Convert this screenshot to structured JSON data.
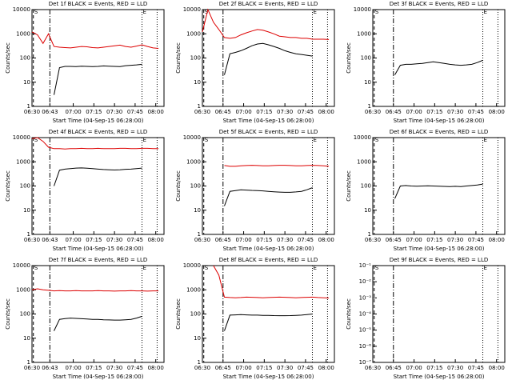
{
  "chart_data": [
    {
      "type": "line",
      "title": "Det 1f BLACK = Events, RED = LLD",
      "ylabel": "Counts/sec",
      "xlabel": "Start Time (04-Sep-15 06:28:00)",
      "log_y": true,
      "start_label": "S",
      "end_label": "E",
      "vlines": [
        1,
        13,
        80,
        91
      ],
      "x": [
        0,
        4,
        8,
        12,
        16,
        20,
        24,
        28,
        32,
        36,
        40,
        44,
        48,
        52,
        56,
        60,
        64,
        68,
        72,
        76,
        80,
        84,
        88,
        92,
        96
      ],
      "xlim": [
        0,
        96
      ],
      "xticks": [
        {
          "value": 0,
          "label": "06:30"
        },
        {
          "value": 13,
          "label": "06:43"
        },
        {
          "value": 30,
          "label": "07:00"
        },
        {
          "value": 45,
          "label": "07:15"
        },
        {
          "value": 60,
          "label": "07:30"
        },
        {
          "value": 75,
          "label": "07:45"
        },
        {
          "value": 90,
          "label": "08:00"
        }
      ],
      "ylim": [
        1,
        10000
      ],
      "yticks": [
        1,
        10,
        100,
        1000,
        10000
      ],
      "series": [
        {
          "color": "#000000",
          "values": [
            null,
            null,
            null,
            null,
            3,
            40,
            45,
            45,
            44,
            46,
            45,
            44,
            45,
            47,
            46,
            45,
            44,
            48,
            50,
            52,
            55,
            null,
            null,
            null,
            null
          ]
        },
        {
          "color": "#dd0000",
          "values": [
            1200,
            900,
            400,
            1000,
            300,
            280,
            270,
            260,
            280,
            300,
            290,
            270,
            260,
            280,
            300,
            320,
            340,
            300,
            280,
            310,
            350,
            300,
            260,
            250,
            null
          ]
        }
      ]
    },
    {
      "type": "line",
      "title": "Det 2f BLACK = Events, RED = LLD",
      "ylabel": "Counts/sec",
      "xlabel": "Start Time (04-Sep-15 06:28:00)",
      "log_y": true,
      "start_label": "S",
      "end_label": "E",
      "vlines": [
        1,
        15,
        80,
        91
      ],
      "x": [
        0,
        4,
        8,
        12,
        16,
        20,
        24,
        28,
        32,
        36,
        40,
        44,
        48,
        52,
        56,
        60,
        64,
        68,
        72,
        76,
        80,
        84,
        88,
        92,
        96
      ],
      "xlim": [
        0,
        96
      ],
      "xticks": [
        {
          "value": 0,
          "label": "06:30"
        },
        {
          "value": 15,
          "label": "06:45"
        },
        {
          "value": 30,
          "label": "07:00"
        },
        {
          "value": 45,
          "label": "07:15"
        },
        {
          "value": 60,
          "label": "07:30"
        },
        {
          "value": 75,
          "label": "07:45"
        },
        {
          "value": 90,
          "label": "08:00"
        }
      ],
      "ylim": [
        1,
        10000
      ],
      "yticks": [
        1,
        10,
        100,
        1000,
        10000
      ],
      "series": [
        {
          "color": "#000000",
          "values": [
            null,
            null,
            null,
            null,
            20,
            150,
            170,
            200,
            250,
            320,
            380,
            400,
            350,
            300,
            250,
            200,
            170,
            150,
            140,
            130,
            120,
            null,
            null,
            null,
            null
          ]
        },
        {
          "color": "#dd0000",
          "values": [
            1200,
            10000,
            3000,
            1500,
            700,
            650,
            700,
            900,
            1100,
            1300,
            1500,
            1400,
            1200,
            1000,
            800,
            750,
            700,
            700,
            650,
            650,
            600,
            600,
            600,
            580,
            null
          ]
        }
      ]
    },
    {
      "type": "line",
      "title": "Det 3f BLACK = Events, RED = LLD",
      "ylabel": "Counts/sec",
      "xlabel": "Start Time (04-Sep-15 06:28:00)",
      "log_y": true,
      "start_label": "S",
      "end_label": "E",
      "vlines": [
        1,
        15,
        80,
        91
      ],
      "x": [
        0,
        4,
        8,
        12,
        16,
        20,
        24,
        28,
        32,
        36,
        40,
        44,
        48,
        52,
        56,
        60,
        64,
        68,
        72,
        76,
        80,
        84,
        88,
        92,
        96
      ],
      "xlim": [
        0,
        96
      ],
      "xticks": [
        {
          "value": 0,
          "label": "06:30"
        },
        {
          "value": 15,
          "label": "06:45"
        },
        {
          "value": 30,
          "label": "07:00"
        },
        {
          "value": 45,
          "label": "07:15"
        },
        {
          "value": 60,
          "label": "07:30"
        },
        {
          "value": 75,
          "label": "07:45"
        },
        {
          "value": 90,
          "label": "08:00"
        }
      ],
      "ylim": [
        1,
        10000
      ],
      "yticks": [
        1,
        10,
        100,
        1000,
        10000
      ],
      "series": [
        {
          "color": "#000000",
          "values": [
            null,
            null,
            null,
            null,
            20,
            50,
            55,
            55,
            58,
            60,
            65,
            70,
            65,
            60,
            55,
            52,
            50,
            52,
            55,
            65,
            80,
            null,
            null,
            null,
            null
          ]
        }
      ]
    },
    {
      "type": "line",
      "title": "Det 4f BLACK = Events, RED = LLD",
      "ylabel": "Counts/sec",
      "xlabel": "Start Time (04-Sep-15 06:28:00)",
      "log_y": true,
      "start_label": "S",
      "end_label": "E",
      "vlines": [
        1,
        13,
        80,
        91
      ],
      "x": [
        0,
        4,
        8,
        12,
        16,
        20,
        24,
        28,
        32,
        36,
        40,
        44,
        48,
        52,
        56,
        60,
        64,
        68,
        72,
        76,
        80,
        84,
        88,
        92,
        96
      ],
      "xlim": [
        0,
        96
      ],
      "xticks": [
        {
          "value": 0,
          "label": "06:30"
        },
        {
          "value": 13,
          "label": "06:43"
        },
        {
          "value": 30,
          "label": "07:00"
        },
        {
          "value": 45,
          "label": "07:15"
        },
        {
          "value": 60,
          "label": "07:30"
        },
        {
          "value": 75,
          "label": "07:45"
        },
        {
          "value": 90,
          "label": "08:00"
        }
      ],
      "ylim": [
        1,
        10000
      ],
      "yticks": [
        1,
        10,
        100,
        1000,
        10000
      ],
      "series": [
        {
          "color": "#000000",
          "values": [
            null,
            null,
            null,
            null,
            100,
            450,
            500,
            520,
            550,
            560,
            540,
            520,
            500,
            480,
            470,
            460,
            470,
            490,
            500,
            520,
            550,
            null,
            null,
            null,
            null
          ]
        },
        {
          "color": "#dd0000",
          "values": [
            9000,
            12000,
            7000,
            4000,
            3500,
            3500,
            3400,
            3500,
            3500,
            3600,
            3500,
            3500,
            3600,
            3500,
            3500,
            3500,
            3600,
            3600,
            3500,
            3500,
            3600,
            3600,
            3500,
            3500,
            null
          ]
        }
      ]
    },
    {
      "type": "line",
      "title": "Det 5f BLACK = Events, RED = LLD",
      "ylabel": "Counts/sec",
      "xlabel": "Start Time (04-Sep-15 06:28:00)",
      "log_y": true,
      "start_label": "S",
      "end_label": "E",
      "vlines": [
        1,
        15,
        80,
        91
      ],
      "x": [
        0,
        4,
        8,
        12,
        16,
        20,
        24,
        28,
        32,
        36,
        40,
        44,
        48,
        52,
        56,
        60,
        64,
        68,
        72,
        76,
        80,
        84,
        88,
        92,
        96
      ],
      "xlim": [
        0,
        96
      ],
      "xticks": [
        {
          "value": 0,
          "label": "06:30"
        },
        {
          "value": 15,
          "label": "06:45"
        },
        {
          "value": 30,
          "label": "07:00"
        },
        {
          "value": 45,
          "label": "07:15"
        },
        {
          "value": 60,
          "label": "07:30"
        },
        {
          "value": 75,
          "label": "07:45"
        },
        {
          "value": 90,
          "label": "08:00"
        }
      ],
      "ylim": [
        1,
        10000
      ],
      "yticks": [
        1,
        10,
        100,
        1000,
        10000
      ],
      "series": [
        {
          "color": "#000000",
          "values": [
            null,
            null,
            null,
            null,
            15,
            60,
            65,
            70,
            68,
            66,
            65,
            63,
            60,
            58,
            56,
            55,
            55,
            57,
            60,
            70,
            85,
            null,
            null,
            null,
            null
          ]
        },
        {
          "color": "#dd0000",
          "values": [
            null,
            null,
            null,
            null,
            700,
            650,
            650,
            680,
            700,
            720,
            700,
            680,
            680,
            700,
            720,
            720,
            700,
            680,
            680,
            700,
            720,
            700,
            680,
            650,
            null
          ]
        }
      ]
    },
    {
      "type": "line",
      "title": "Det 6f BLACK = Events, RED = LLD",
      "ylabel": "Counts/sec",
      "xlabel": "Start Time (04-Sep-15 06:28:00)",
      "log_y": true,
      "start_label": "S",
      "end_label": "E",
      "vlines": [
        1,
        15,
        80,
        91
      ],
      "x": [
        0,
        4,
        8,
        12,
        16,
        20,
        24,
        28,
        32,
        36,
        40,
        44,
        48,
        52,
        56,
        60,
        64,
        68,
        72,
        76,
        80,
        84,
        88,
        92,
        96
      ],
      "xlim": [
        0,
        96
      ],
      "xticks": [
        {
          "value": 0,
          "label": "06:30"
        },
        {
          "value": 15,
          "label": "06:45"
        },
        {
          "value": 30,
          "label": "07:00"
        },
        {
          "value": 45,
          "label": "07:15"
        },
        {
          "value": 60,
          "label": "07:30"
        },
        {
          "value": 75,
          "label": "07:45"
        },
        {
          "value": 90,
          "label": "08:00"
        }
      ],
      "ylim": [
        1,
        10000
      ],
      "yticks": [
        1,
        10,
        100,
        1000,
        10000
      ],
      "series": [
        {
          "color": "#000000",
          "values": [
            null,
            null,
            null,
            null,
            30,
            100,
            105,
            100,
            98,
            100,
            102,
            100,
            98,
            96,
            95,
            97,
            95,
            100,
            105,
            110,
            120,
            null,
            null,
            null,
            null
          ]
        }
      ]
    },
    {
      "type": "line",
      "title": "Det 7f BLACK = Events, RED = LLD",
      "ylabel": "Counts/sec",
      "xlabel": "Start Time (04-Sep-15 06:28:00)",
      "log_y": true,
      "start_label": "S",
      "end_label": "E",
      "vlines": [
        1,
        13,
        80,
        91
      ],
      "x": [
        0,
        4,
        8,
        12,
        16,
        20,
        24,
        28,
        32,
        36,
        40,
        44,
        48,
        52,
        56,
        60,
        64,
        68,
        72,
        76,
        80,
        84,
        88,
        92,
        96
      ],
      "xlim": [
        0,
        96
      ],
      "xticks": [
        {
          "value": 0,
          "label": "06:30"
        },
        {
          "value": 13,
          "label": "06:43"
        },
        {
          "value": 30,
          "label": "07:00"
        },
        {
          "value": 45,
          "label": "07:15"
        },
        {
          "value": 60,
          "label": "07:30"
        },
        {
          "value": 75,
          "label": "07:45"
        },
        {
          "value": 90,
          "label": "08:00"
        }
      ],
      "ylim": [
        1,
        10000
      ],
      "yticks": [
        1,
        10,
        100,
        1000,
        10000
      ],
      "series": [
        {
          "color": "#000000",
          "values": [
            null,
            null,
            null,
            null,
            20,
            60,
            65,
            68,
            66,
            64,
            62,
            60,
            60,
            58,
            57,
            56,
            56,
            58,
            60,
            68,
            80,
            null,
            null,
            null,
            null
          ]
        },
        {
          "color": "#dd0000",
          "values": [
            1000,
            1100,
            1000,
            950,
            900,
            920,
            900,
            900,
            920,
            900,
            900,
            900,
            920,
            900,
            900,
            880,
            900,
            900,
            920,
            900,
            900,
            880,
            900,
            900,
            null
          ]
        }
      ]
    },
    {
      "type": "line",
      "title": "Det 8f BLACK = Events, RED = LLD",
      "ylabel": "Counts/sec",
      "xlabel": "Start Time (04-Sep-15 06:28:00)",
      "log_y": true,
      "start_label": "S",
      "end_label": "E",
      "vlines": [
        1,
        15,
        80,
        91
      ],
      "x": [
        0,
        4,
        8,
        12,
        16,
        20,
        24,
        28,
        32,
        36,
        40,
        44,
        48,
        52,
        56,
        60,
        64,
        68,
        72,
        76,
        80,
        84,
        88,
        92,
        96
      ],
      "xlim": [
        0,
        96
      ],
      "xticks": [
        {
          "value": 0,
          "label": "06:30"
        },
        {
          "value": 15,
          "label": "06:45"
        },
        {
          "value": 30,
          "label": "07:00"
        },
        {
          "value": 45,
          "label": "07:15"
        },
        {
          "value": 60,
          "label": "07:30"
        },
        {
          "value": 75,
          "label": "07:45"
        },
        {
          "value": 90,
          "label": "08:00"
        }
      ],
      "ylim": [
        1,
        10000
      ],
      "yticks": [
        1,
        10,
        100,
        1000,
        10000
      ],
      "series": [
        {
          "color": "#000000",
          "values": [
            null,
            null,
            null,
            null,
            20,
            90,
            92,
            95,
            92,
            90,
            90,
            88,
            88,
            86,
            85,
            85,
            86,
            88,
            90,
            95,
            100,
            null,
            null,
            null,
            null
          ]
        },
        {
          "color": "#dd0000",
          "values": [
            null,
            null,
            12000,
            4000,
            500,
            480,
            470,
            480,
            500,
            490,
            480,
            470,
            480,
            490,
            500,
            490,
            480,
            470,
            480,
            490,
            500,
            480,
            470,
            460,
            null
          ]
        }
      ]
    },
    {
      "type": "line",
      "title": "Det 9f BLACK = Events, RED = LLD",
      "ylabel": "Counts/sec",
      "xlabel": "Start Time (04-Sep-15 06:28:00)",
      "log_y": true,
      "start_label": "S",
      "end_label": "E",
      "vlines": [
        1,
        15,
        80,
        91
      ],
      "xlim": [
        0,
        96
      ],
      "xticks": [
        {
          "value": 0,
          "label": "06:30"
        },
        {
          "value": 15,
          "label": "06:45"
        },
        {
          "value": 30,
          "label": "07:00"
        },
        {
          "value": 45,
          "label": "07:15"
        },
        {
          "value": 60,
          "label": "07:30"
        },
        {
          "value": 75,
          "label": "07:45"
        },
        {
          "value": 90,
          "label": "08:00"
        }
      ],
      "ylim": [
        1e-07,
        0.1
      ],
      "yticks": [
        {
          "value": 1e-07,
          "label": "10⁻⁷"
        },
        {
          "value": 1e-06,
          "label": "10⁻⁶"
        },
        {
          "value": 1e-05,
          "label": "10⁻⁵"
        },
        {
          "value": 0.0001,
          "label": "10⁻⁴"
        },
        {
          "value": 0.001,
          "label": "10⁻³"
        },
        {
          "value": 0.01,
          "label": "10⁻²"
        },
        {
          "value": 0.1,
          "label": "10⁻¹"
        }
      ]
    }
  ]
}
